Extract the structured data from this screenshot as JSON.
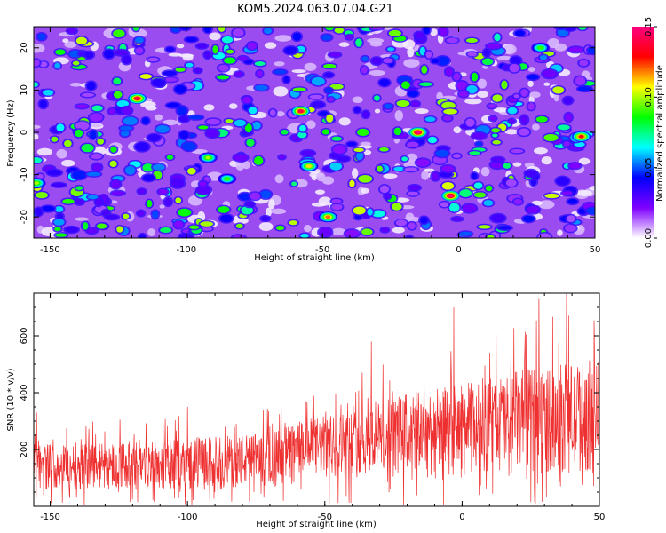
{
  "figure": {
    "title": "KOM5.2024.063.07.04.G21"
  },
  "chart_data": [
    {
      "type": "heatmap",
      "xlabel": "Height of straight line (km)",
      "ylabel": "Frequency (Hz)",
      "xlim": [
        -156,
        50
      ],
      "ylim": [
        -25,
        25
      ],
      "xticks": [
        -150,
        -100,
        -50,
        0,
        50
      ],
      "yticks": [
        -20,
        -10,
        0,
        10,
        20
      ],
      "colorbar": {
        "label": "Normalized spectral amplitude",
        "range": [
          0,
          0.15
        ],
        "ticks": [
          "0.00",
          "0.05",
          "0.10",
          "0.15"
        ],
        "colors": [
          "#ffffff",
          "#7f00ff",
          "#0000ff",
          "#00ffff",
          "#00ff00",
          "#ffff00",
          "#ff0000",
          "#ff0080"
        ]
      },
      "grid": false,
      "peaks": [
        {
          "x": -118,
          "y": 8,
          "value": 0.14
        },
        {
          "x": -58,
          "y": 5,
          "value": 0.14
        },
        {
          "x": -15,
          "y": 0,
          "value": 0.15
        },
        {
          "x": -3,
          "y": -15,
          "value": 0.15
        },
        {
          "x": 45,
          "y": -1,
          "value": 0.13
        },
        {
          "x": -48,
          "y": -20,
          "value": 0.12
        },
        {
          "x": -55,
          "y": -8,
          "value": 0.11
        },
        {
          "x": -92,
          "y": -6,
          "value": 0.1
        },
        {
          "x": -85,
          "y": -11,
          "value": 0.09
        },
        {
          "x": -155,
          "y": -12,
          "value": 0.1
        },
        {
          "x": 30,
          "y": 20,
          "value": 0.09
        }
      ]
    },
    {
      "type": "line",
      "xlabel": "Height of straight line (km)",
      "ylabel": "SNR (10 * v/v)",
      "xlim": [
        -156,
        50
      ],
      "ylim": [
        0,
        750
      ],
      "xticks": [
        -150,
        -100,
        -50,
        0,
        50
      ],
      "yticks": [
        200,
        400,
        600
      ],
      "grid": false,
      "series": [
        {
          "color": "#ee3030",
          "envelope": [
            {
              "x": -156,
              "low": 60,
              "high": 220
            },
            {
              "x": -120,
              "low": 60,
              "high": 230
            },
            {
              "x": -100,
              "low": 55,
              "high": 240
            },
            {
              "x": -70,
              "low": 70,
              "high": 260
            },
            {
              "x": -60,
              "low": 90,
              "high": 300
            },
            {
              "x": -40,
              "low": 100,
              "high": 340
            },
            {
              "x": -20,
              "low": 110,
              "high": 400
            },
            {
              "x": 0,
              "low": 100,
              "high": 430
            },
            {
              "x": 20,
              "low": 110,
              "high": 480
            },
            {
              "x": 50,
              "low": 120,
              "high": 520
            }
          ],
          "peaks": [
            {
              "x": -155,
              "value": 330
            },
            {
              "x": -100,
              "value": 350
            },
            {
              "x": -57,
              "value": 370
            },
            {
              "x": -33,
              "value": 580
            },
            {
              "x": -3,
              "value": 700
            },
            {
              "x": 28,
              "value": 730
            },
            {
              "x": 38,
              "value": 750
            }
          ]
        }
      ]
    }
  ]
}
